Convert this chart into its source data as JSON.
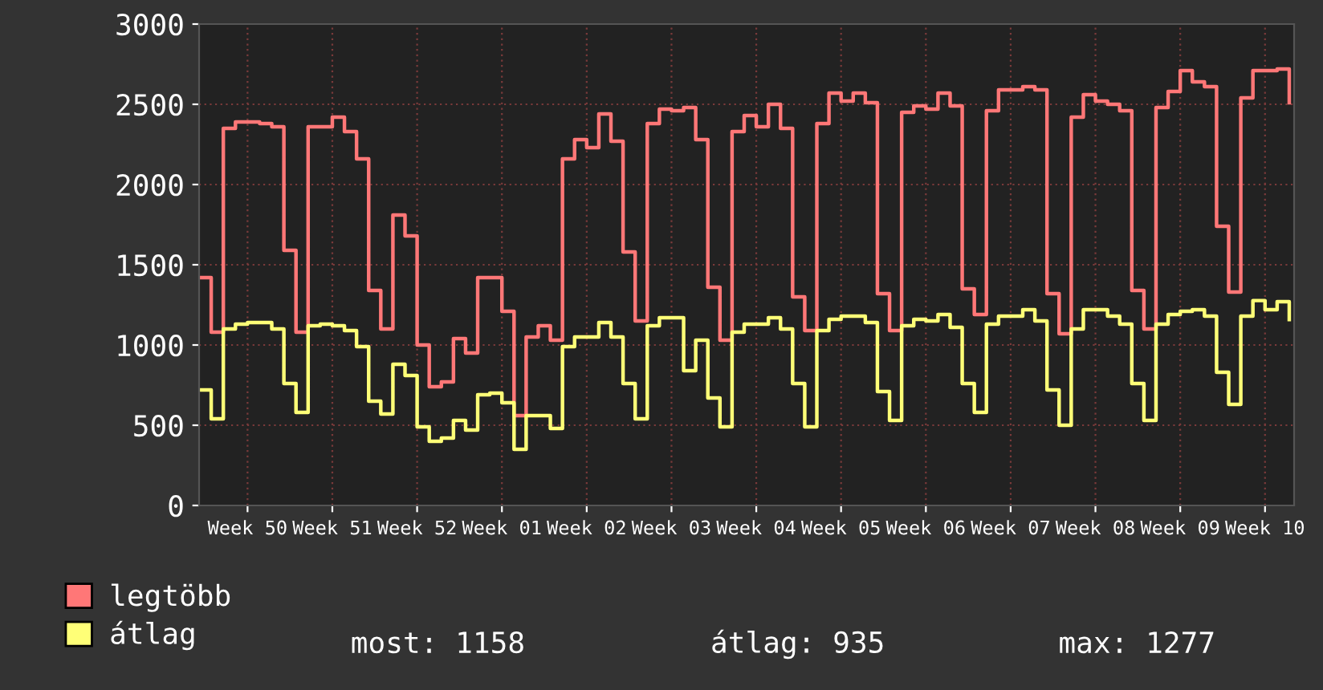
{
  "chart_data": {
    "type": "step",
    "categories": [
      null,
      null,
      null,
      null,
      "Week 50",
      null,
      null,
      null,
      null,
      null,
      null,
      "Week 51",
      null,
      null,
      null,
      null,
      null,
      null,
      "Week 52",
      null,
      null,
      null,
      null,
      null,
      null,
      "Week 01",
      null,
      null,
      null,
      null,
      null,
      null,
      "Week 02",
      null,
      null,
      null,
      null,
      null,
      null,
      "Week 03",
      null,
      null,
      null,
      null,
      null,
      null,
      "Week 04",
      null,
      null,
      null,
      null,
      null,
      null,
      "Week 05",
      null,
      null,
      null,
      null,
      null,
      null,
      "Week 06",
      null,
      null,
      null,
      null,
      null,
      null,
      "Week 07",
      null,
      null,
      null,
      null,
      null,
      null,
      "Week 08",
      null,
      null,
      null,
      null,
      null,
      null,
      "Week 09",
      null,
      null,
      null,
      null,
      null,
      null,
      "Week 10",
      null,
      null
    ],
    "series": [
      {
        "name": "legtöbb",
        "color": "#ff7777",
        "values": [
          1420,
          1080,
          2350,
          2390,
          2390,
          2380,
          2360,
          1590,
          1080,
          2360,
          2360,
          2420,
          2330,
          2160,
          1340,
          1100,
          1810,
          1680,
          1000,
          740,
          770,
          1040,
          950,
          1420,
          1420,
          1210,
          560,
          1050,
          1120,
          1030,
          2160,
          2280,
          2230,
          2440,
          2270,
          1580,
          1150,
          2380,
          2470,
          2460,
          2480,
          2280,
          1360,
          1030,
          2330,
          2430,
          2360,
          2500,
          2350,
          1300,
          1090,
          2380,
          2570,
          2520,
          2570,
          2510,
          1320,
          1090,
          2450,
          2490,
          2470,
          2570,
          2490,
          1350,
          1190,
          2460,
          2590,
          2590,
          2610,
          2590,
          1320,
          1070,
          2420,
          2560,
          2520,
          2500,
          2460,
          1340,
          1100,
          2480,
          2580,
          2710,
          2640,
          2610,
          1740,
          1330,
          2540,
          2710,
          2710,
          2720,
          2510
        ]
      },
      {
        "name": "átlag",
        "color": "#ffff77",
        "values": [
          720,
          540,
          1100,
          1130,
          1140,
          1140,
          1100,
          760,
          580,
          1120,
          1130,
          1120,
          1090,
          990,
          650,
          570,
          880,
          810,
          490,
          400,
          420,
          530,
          470,
          690,
          700,
          640,
          350,
          560,
          560,
          480,
          990,
          1050,
          1050,
          1140,
          1050,
          760,
          540,
          1120,
          1170,
          1170,
          840,
          1030,
          670,
          490,
          1080,
          1130,
          1130,
          1170,
          1100,
          760,
          490,
          1090,
          1160,
          1180,
          1180,
          1140,
          710,
          530,
          1120,
          1160,
          1150,
          1190,
          1110,
          760,
          580,
          1130,
          1180,
          1180,
          1220,
          1150,
          720,
          500,
          1100,
          1220,
          1220,
          1180,
          1130,
          760,
          530,
          1130,
          1190,
          1210,
          1220,
          1180,
          830,
          630,
          1180,
          1277,
          1220,
          1270,
          1158
        ]
      }
    ],
    "ylim": [
      0,
      3000
    ],
    "yticks": [
      0,
      500,
      1000,
      1500,
      2000,
      2500,
      3000
    ],
    "grid": true,
    "legend": "bottom left",
    "annotations": [
      "most: 1158",
      "átlag: 935",
      "max: 1277"
    ]
  }
}
